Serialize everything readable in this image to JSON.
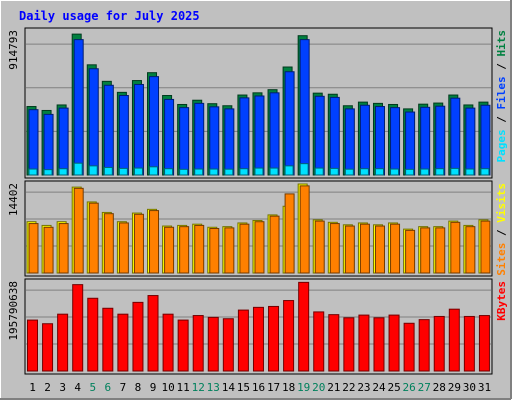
{
  "title": "Daily usage for July 2025",
  "days": [
    "1",
    "2",
    "3",
    "4",
    "5",
    "6",
    "7",
    "8",
    "9",
    "10",
    "11",
    "12",
    "13",
    "14",
    "15",
    "16",
    "17",
    "18",
    "19",
    "20",
    "21",
    "22",
    "23",
    "24",
    "25",
    "26",
    "27",
    "28",
    "29",
    "30",
    "31"
  ],
  "weekend_days": [
    5,
    6,
    12,
    13,
    19,
    20,
    26,
    27
  ],
  "colors": {
    "background": "#c0c0c0",
    "title": "#0000ff",
    "hits": "#008040",
    "files": "#0040ff",
    "pages": "#00e0ff",
    "visits": "#ffff00",
    "sites": "#ff8000",
    "kbytes": "#ff0000",
    "weekend_label": "#00805c",
    "weekday_label": "#000000"
  },
  "chart_data": [
    {
      "type": "bar",
      "panel": "hits-files-pages",
      "ymax_label": "914793",
      "ylim": [
        0,
        914793
      ],
      "legend": [
        {
          "text": "Hits",
          "color_key": "hits"
        },
        {
          "text": " / ",
          "color_key": "weekday_label"
        },
        {
          "text": "Files",
          "color_key": "files"
        },
        {
          "text": " / ",
          "color_key": "weekday_label"
        },
        {
          "text": "Pages",
          "color_key": "pages"
        }
      ],
      "series": [
        {
          "name": "Hits",
          "color_key": "hits",
          "values": [
            435000,
            410000,
            445000,
            895000,
            700000,
            595000,
            525000,
            600000,
            650000,
            505000,
            448000,
            475000,
            453000,
            440000,
            508000,
            522000,
            542000,
            686000,
            885000,
            520000,
            513000,
            440000,
            463000,
            455000,
            448000,
            420000,
            450000,
            457000,
            508000,
            445000,
            463000
          ]
        },
        {
          "name": "Files",
          "color_key": "files",
          "values": [
            415000,
            385000,
            425000,
            860000,
            675000,
            570000,
            505000,
            575000,
            625000,
            480000,
            428000,
            455000,
            433000,
            420000,
            490000,
            502000,
            522000,
            656000,
            860000,
            500000,
            493000,
            420000,
            443000,
            435000,
            428000,
            400000,
            430000,
            437000,
            488000,
            425000,
            443000
          ]
        },
        {
          "name": "Pages",
          "color_key": "pages",
          "values": [
            38000,
            34000,
            40000,
            75000,
            58000,
            48000,
            42000,
            44000,
            52000,
            40000,
            36000,
            38000,
            38000,
            37000,
            40000,
            44000,
            44000,
            58000,
            72000,
            44000,
            42000,
            37000,
            40000,
            40000,
            38000,
            36000,
            38000,
            40000,
            42000,
            38000,
            40000
          ]
        }
      ]
    },
    {
      "type": "bar",
      "panel": "visits-sites",
      "ymax_label": "14402",
      "ylim": [
        0,
        14402
      ],
      "legend": [
        {
          "text": "Visits",
          "color_key": "visits"
        },
        {
          "text": " / ",
          "color_key": "weekday_label"
        },
        {
          "text": "Sites",
          "color_key": "sites"
        }
      ],
      "series": [
        {
          "name": "Visits",
          "color_key": "visits",
          "values": [
            8300,
            7700,
            8300,
            13900,
            11500,
            9800,
            8300,
            9700,
            10300,
            7600,
            7700,
            7900,
            7400,
            7500,
            8100,
            8500,
            9400,
            10800,
            14400,
            8600,
            8200,
            7800,
            8100,
            7800,
            8100,
            7100,
            7500,
            7500,
            8400,
            7700,
            8600
          ]
        },
        {
          "name": "Sites",
          "color_key": "sites",
          "values": [
            8000,
            7400,
            8000,
            13700,
            11300,
            9600,
            8100,
            9500,
            10100,
            7400,
            7500,
            7700,
            7200,
            7300,
            7900,
            8300,
            9200,
            12800,
            14100,
            8400,
            8000,
            7600,
            7900,
            7600,
            7900,
            6900,
            7300,
            7300,
            8200,
            7500,
            8400
          ]
        }
      ]
    },
    {
      "type": "bar",
      "panel": "kbytes",
      "ymax_label": "195790638",
      "ylim": [
        0,
        195790638
      ],
      "legend": [
        {
          "text": "KBytes",
          "color_key": "kbytes"
        }
      ],
      "series": [
        {
          "name": "KBytes",
          "color_key": "kbytes",
          "values": [
            112000000,
            104000000,
            125000000,
            190000000,
            160000000,
            138000000,
            125000000,
            151000000,
            166000000,
            125000000,
            112000000,
            122000000,
            118000000,
            115000000,
            134000000,
            140000000,
            142000000,
            155000000,
            195000000,
            130000000,
            124000000,
            117000000,
            123000000,
            117000000,
            123000000,
            105000000,
            113000000,
            120000000,
            136000000,
            120000000,
            122000000
          ]
        }
      ]
    }
  ]
}
